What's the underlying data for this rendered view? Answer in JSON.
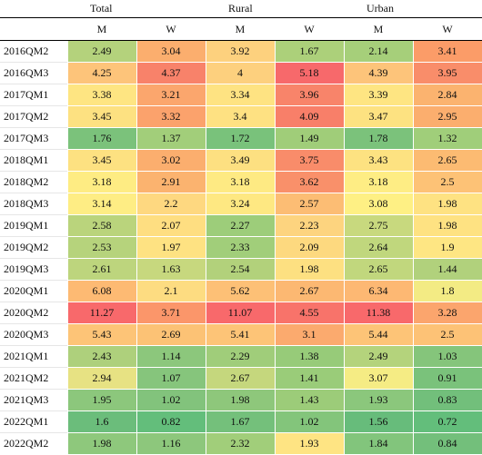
{
  "groups": [
    "Total",
    "Rural",
    "Urban"
  ],
  "subcolumns": [
    "M",
    "W",
    "M",
    "W",
    "M",
    "W"
  ],
  "rows": [
    {
      "label": "2016QM2",
      "values": [
        "2.49",
        "3.04",
        "3.92",
        "1.67",
        "2.14",
        "3.41"
      ],
      "colors": [
        "#b4d27c",
        "#fbae6e",
        "#fdd17e",
        "#acd07a",
        "#a6cf7a",
        "#fb9c68"
      ]
    },
    {
      "label": "2016QM3",
      "values": [
        "4.25",
        "4.37",
        "4",
        "5.18",
        "4.39",
        "3.95"
      ],
      "colors": [
        "#fdc47a",
        "#f8826a",
        "#fdd07e",
        "#f7696b",
        "#fdc47a",
        "#f98d6a"
      ]
    },
    {
      "label": "2017QM1",
      "values": [
        "3.38",
        "3.21",
        "3.34",
        "3.96",
        "3.39",
        "2.84"
      ],
      "colors": [
        "#fee582",
        "#fba66d",
        "#fee382",
        "#f8846a",
        "#fee582",
        "#fbb36f"
      ]
    },
    {
      "label": "2017QM2",
      "values": [
        "3.45",
        "3.32",
        "3.4",
        "4.09",
        "3.47",
        "2.95"
      ],
      "colors": [
        "#fde181",
        "#fba26c",
        "#fee182",
        "#f87f69",
        "#fde281",
        "#fbae6e"
      ]
    },
    {
      "label": "2017QM3",
      "values": [
        "1.76",
        "1.37",
        "1.72",
        "1.49",
        "1.78",
        "1.32"
      ],
      "colors": [
        "#7bc27b",
        "#a2ce7a",
        "#79c27b",
        "#a0cd79",
        "#7bc27b",
        "#a0ce7a"
      ]
    },
    {
      "label": "2018QM1",
      "values": [
        "3.45",
        "3.02",
        "3.49",
        "3.75",
        "3.43",
        "2.65"
      ],
      "colors": [
        "#fde181",
        "#fbae6e",
        "#fde081",
        "#f98c6a",
        "#fde281",
        "#fcbb72"
      ]
    },
    {
      "label": "2018QM2",
      "values": [
        "3.18",
        "2.91",
        "3.18",
        "3.62",
        "3.18",
        "2.5"
      ],
      "colors": [
        "#feec83",
        "#fbb36f",
        "#feea83",
        "#f9906a",
        "#feed84",
        "#fdc276"
      ]
    },
    {
      "label": "2018QM3",
      "values": [
        "3.14",
        "2.2",
        "3.24",
        "2.57",
        "3.08",
        "1.98"
      ],
      "colors": [
        "#feed84",
        "#fed880",
        "#fee882",
        "#fcbd74",
        "#fef084",
        "#fee282"
      ]
    },
    {
      "label": "2019QM1",
      "values": [
        "2.58",
        "2.07",
        "2.27",
        "2.23",
        "2.75",
        "1.98"
      ],
      "colors": [
        "#bad47c",
        "#fede81",
        "#9dcd7a",
        "#fdd47f",
        "#c8d97e",
        "#fee282"
      ]
    },
    {
      "label": "2019QM2",
      "values": [
        "2.53",
        "1.97",
        "2.33",
        "2.09",
        "2.64",
        "1.9"
      ],
      "colors": [
        "#b6d37c",
        "#fee282",
        "#a1ce7a",
        "#fdd97f",
        "#c0d77d",
        "#fee683"
      ]
    },
    {
      "label": "2019QM3",
      "values": [
        "2.61",
        "1.63",
        "2.54",
        "1.98",
        "2.65",
        "1.44"
      ],
      "colors": [
        "#bdd57d",
        "#c7d87e",
        "#b2d17b",
        "#fde081",
        "#c1d77d",
        "#b1d17c"
      ]
    },
    {
      "label": "2020QM1",
      "values": [
        "6.08",
        "2.1",
        "5.62",
        "2.67",
        "6.34",
        "1.8"
      ],
      "colors": [
        "#fdba73",
        "#fddc81",
        "#fdc076",
        "#fcb872",
        "#fdb873",
        "#f3eb84"
      ]
    },
    {
      "label": "2020QM2",
      "values": [
        "11.27",
        "3.71",
        "11.07",
        "4.55",
        "11.38",
        "3.28"
      ],
      "colors": [
        "#f8696b",
        "#fb966a",
        "#f8696b",
        "#f8736a",
        "#f8696b",
        "#fba56d"
      ]
    },
    {
      "label": "2020QM3",
      "values": [
        "5.43",
        "2.69",
        "5.41",
        "3.1",
        "5.44",
        "2.5"
      ],
      "colors": [
        "#fdc477",
        "#fcc275",
        "#fdc477",
        "#fbaa6e",
        "#fdc477",
        "#fdc276"
      ]
    },
    {
      "label": "2021QM1",
      "values": [
        "2.43",
        "1.14",
        "2.29",
        "1.38",
        "2.49",
        "1.03"
      ],
      "colors": [
        "#aed07c",
        "#8cc77c",
        "#a0cd7a",
        "#97cb79",
        "#b4d37c",
        "#85c57b"
      ]
    },
    {
      "label": "2021QM2",
      "values": [
        "2.94",
        "1.07",
        "2.67",
        "1.41",
        "3.07",
        "0.91"
      ],
      "colors": [
        "#e7e283",
        "#86c57c",
        "#c5d77d",
        "#9acc79",
        "#f5ec84",
        "#7ac27b"
      ]
    },
    {
      "label": "2021QM3",
      "values": [
        "1.95",
        "1.02",
        "1.98",
        "1.43",
        "1.93",
        "0.83"
      ],
      "colors": [
        "#8cc77c",
        "#82c37c",
        "#8ec77b",
        "#9ccc79",
        "#8bc77c",
        "#72bf7b"
      ]
    },
    {
      "label": "2022QM1",
      "values": [
        "1.6",
        "0.82",
        "1.67",
        "1.02",
        "1.56",
        "0.72"
      ],
      "colors": [
        "#6bbd7b",
        "#63be7b",
        "#74c07b",
        "#83c57b",
        "#67bc7b",
        "#63be7b"
      ]
    },
    {
      "label": "2022QM2",
      "values": [
        "1.98",
        "1.16",
        "2.32",
        "1.93",
        "1.84",
        "0.84"
      ],
      "colors": [
        "#8ec87c",
        "#8dc77c",
        "#a1ce7a",
        "#fee483",
        "#82c57c",
        "#73bf7b"
      ]
    }
  ]
}
